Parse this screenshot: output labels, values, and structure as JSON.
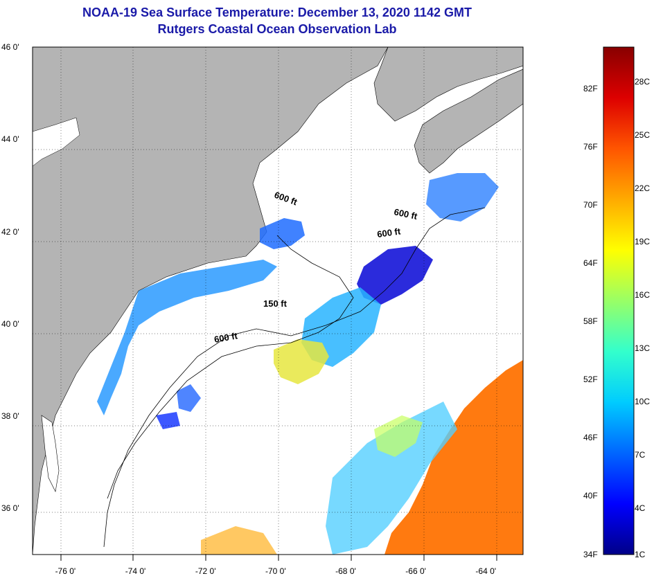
{
  "header": {
    "title": "NOAA-19 Sea Surface Temperature:  December 13, 2020 1142 GMT",
    "subtitle": "Rutgers Coastal Ocean Observation Lab"
  },
  "map": {
    "lat_labels": [
      "46 0'",
      "44 0'",
      "42 0'",
      "40 0'",
      "38 0'",
      "36 0'"
    ],
    "lat_values": [
      46,
      44,
      42,
      40,
      38,
      36
    ],
    "lon_labels": [
      "-76 0'",
      "-74 0'",
      "-72 0'",
      "-70 0'",
      "-68 0'",
      "-66 0'",
      "-64 0'"
    ],
    "lon_values": [
      -76,
      -74,
      -72,
      -70,
      -68,
      -66,
      -64
    ],
    "lat_range": [
      35,
      46
    ],
    "lon_range": [
      -77,
      -63
    ],
    "isobath_labels": [
      "600 ft",
      "600 ft",
      "600 ft",
      "150 ft",
      "600 ft"
    ],
    "colors": {
      "land": "#b4b4b4",
      "cloud": "#ffffff",
      "coast": "#000000"
    }
  },
  "colorbar": {
    "fahrenheit": [
      "82F",
      "76F",
      "70F",
      "64F",
      "58F",
      "52F",
      "46F",
      "40F",
      "34F"
    ],
    "celsius": [
      "28C",
      "25C",
      "22C",
      "19C",
      "16C",
      "13C",
      "10C",
      "7C",
      "4C",
      "1C"
    ],
    "stops": [
      "#000088",
      "#0000ff",
      "#0066ff",
      "#00ccff",
      "#33ffcc",
      "#99ff66",
      "#ffff00",
      "#ffaa00",
      "#ff5500",
      "#dd0000",
      "#880000"
    ]
  }
}
